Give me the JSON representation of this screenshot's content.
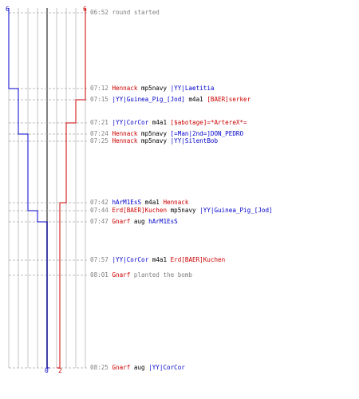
{
  "colors": {
    "blue": "#0000cc",
    "red": "#cc0000",
    "gray": "#808080",
    "black": "#000000"
  },
  "scores": {
    "blue_start": "6",
    "red_start": "6",
    "blue_end": "0",
    "red_end": "2"
  },
  "events": [
    {
      "time": "06:52",
      "parts": [
        {
          "text": "round started",
          "color": "#808080"
        }
      ]
    },
    {
      "time": "07:12",
      "parts": [
        {
          "text": "Hennack",
          "color": "#cc0000"
        },
        {
          "text": " mp5navy ",
          "color": "#000000"
        },
        {
          "text": "|YY|Laetitia",
          "color": "#0000cc"
        }
      ]
    },
    {
      "time": "07:15",
      "parts": [
        {
          "text": "|YY|Guinea_Pig_[Jod]",
          "color": "#0000cc"
        },
        {
          "text": " m4a1 ",
          "color": "#000000"
        },
        {
          "text": "[BAER]serker",
          "color": "#cc0000"
        }
      ]
    },
    {
      "time": "07:21",
      "parts": [
        {
          "text": "|YY|CorCor",
          "color": "#0000cc"
        },
        {
          "text": " m4a1 ",
          "color": "#000000"
        },
        {
          "text": "[$abotage]=*ArtereX*=",
          "color": "#cc0000"
        }
      ]
    },
    {
      "time": "07:24",
      "parts": [
        {
          "text": "Hennack",
          "color": "#cc0000"
        },
        {
          "text": " mp5navy ",
          "color": "#000000"
        },
        {
          "text": "[=Man|2nd=]DON_PEDRO",
          "color": "#0000cc"
        }
      ]
    },
    {
      "time": "07:25",
      "parts": [
        {
          "text": "Hennack",
          "color": "#cc0000"
        },
        {
          "text": " mp5navy ",
          "color": "#000000"
        },
        {
          "text": "|YY|SilentBob",
          "color": "#0000cc"
        }
      ]
    },
    {
      "time": "07:42",
      "parts": [
        {
          "text": "hArM1EsS",
          "color": "#0000cc"
        },
        {
          "text": " m4a1 ",
          "color": "#000000"
        },
        {
          "text": "Hennack",
          "color": "#cc0000"
        }
      ]
    },
    {
      "time": "07:44",
      "parts": [
        {
          "text": "Erd[BAER]Kuchen",
          "color": "#cc0000"
        },
        {
          "text": " mp5navy ",
          "color": "#000000"
        },
        {
          "text": "|YY|Guinea_Pig_[Jod]",
          "color": "#0000cc"
        }
      ]
    },
    {
      "time": "07:47",
      "parts": [
        {
          "text": "Gnarf",
          "color": "#cc0000"
        },
        {
          "text": " aug ",
          "color": "#000000"
        },
        {
          "text": "hArM1EsS",
          "color": "#0000cc"
        }
      ]
    },
    {
      "time": "07:57",
      "parts": [
        {
          "text": "|YY|CorCor",
          "color": "#0000cc"
        },
        {
          "text": " m4a1 ",
          "color": "#000000"
        },
        {
          "text": "Erd[BAER]Kuchen",
          "color": "#cc0000"
        }
      ]
    },
    {
      "time": "08:01",
      "parts": [
        {
          "text": "Gnarf",
          "color": "#cc0000"
        },
        {
          "text": " planted the bomb",
          "color": "#808080"
        }
      ]
    },
    {
      "time": "08:25",
      "parts": [
        {
          "text": "Gnarf",
          "color": "#cc0000"
        },
        {
          "text": " aug ",
          "color": "#000000"
        },
        {
          "text": "|YY|CorCor",
          "color": "#0000cc"
        }
      ]
    }
  ]
}
